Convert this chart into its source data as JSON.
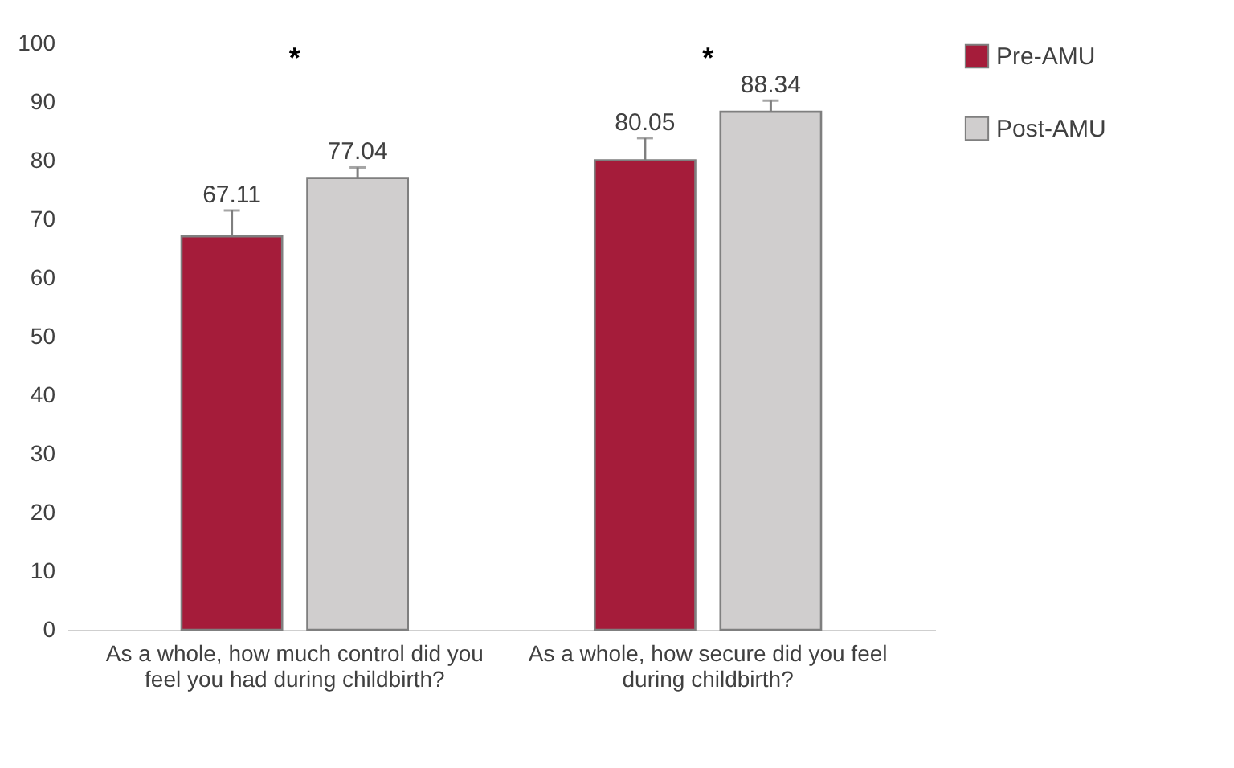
{
  "chart_data": {
    "type": "bar",
    "categories": [
      "As a whole, how much control did you feel you had during childbirth?",
      "As a whole, how secure did you feel during childbirth?"
    ],
    "series": [
      {
        "name": "Pre-AMU",
        "color": "#a51c3a",
        "values": [
          67.11,
          80.05
        ],
        "errors": [
          4.4,
          3.8
        ]
      },
      {
        "name": "Post-AMU",
        "color": "#d0cece",
        "values": [
          77.04,
          88.34
        ],
        "errors": [
          1.8,
          1.9
        ]
      }
    ],
    "ylim": [
      0,
      100
    ],
    "yticks": [
      0,
      10,
      20,
      30,
      40,
      50,
      60,
      70,
      80,
      90,
      100
    ],
    "data_labels": true,
    "grid": false,
    "legend": "right",
    "annotations": [
      "*",
      "*"
    ]
  }
}
